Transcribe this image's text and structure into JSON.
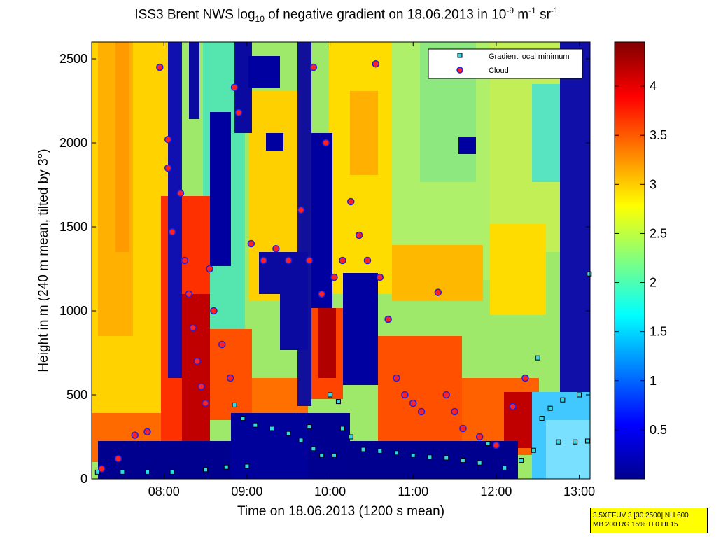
{
  "title": {
    "pre": "ISS3 Brent NWS log",
    "sub": "10",
    "mid": " of negative gradient on 18.06.2013 in 10",
    "sup1": "-9",
    "mid2": " m",
    "sup2": "-1",
    "mid3": " sr",
    "sup3": "-1"
  },
  "info_box": {
    "line1": "3.5XEFUV 3 [30 2500] NH 600",
    "line2": "MB 200 RG 15% TI 0 HI 15"
  },
  "chart_data": {
    "type": "heatmap",
    "title": "ISS3 Brent NWS log10 of negative gradient on 18.06.2013 in 10^-9 m^-1 sr^-1",
    "xlabel": "Time on 18.06.2013 (1200 s mean)",
    "ylabel": "Height in m (240 m mean, tilted by 3°)",
    "xlim": [
      7.13,
      13.13
    ],
    "ylim": [
      0,
      2600
    ],
    "xticks": [
      8,
      9,
      10,
      11,
      12,
      13
    ],
    "xtick_labels": [
      "08:00",
      "09:00",
      "10:00",
      "11:00",
      "12:00",
      "13:00"
    ],
    "yticks": [
      0,
      500,
      1000,
      1500,
      2000,
      2500
    ],
    "ytick_labels": [
      "0",
      "500",
      "1000",
      "1500",
      "2000",
      "2500"
    ],
    "colorbar": {
      "range": [
        0,
        4.45
      ],
      "ticks": [
        0.5,
        1,
        1.5,
        2,
        2.5,
        3,
        3.5,
        4
      ],
      "tick_labels": [
        "0.5",
        "1",
        "1.5",
        "2",
        "2.5",
        "3",
        "3.5",
        "4"
      ]
    },
    "legend": {
      "position": "top-right",
      "entries": [
        "Gradient local minimum",
        "Cloud"
      ]
    },
    "series": [
      {
        "name": "Gradient local minimum",
        "marker": "square",
        "points": [
          [
            7.2,
            40
          ],
          [
            7.5,
            40
          ],
          [
            7.8,
            40
          ],
          [
            8.1,
            40
          ],
          [
            8.5,
            55
          ],
          [
            8.75,
            70
          ],
          [
            9.0,
            75
          ],
          [
            8.85,
            440
          ],
          [
            8.95,
            360
          ],
          [
            9.1,
            320
          ],
          [
            9.3,
            300
          ],
          [
            9.5,
            270
          ],
          [
            9.65,
            230
          ],
          [
            9.8,
            180
          ],
          [
            9.75,
            310
          ],
          [
            9.9,
            140
          ],
          [
            10.05,
            140
          ],
          [
            10.0,
            500
          ],
          [
            10.1,
            460
          ],
          [
            10.15,
            300
          ],
          [
            10.25,
            250
          ],
          [
            10.4,
            175
          ],
          [
            10.6,
            165
          ],
          [
            10.8,
            155
          ],
          [
            11.0,
            140
          ],
          [
            11.2,
            130
          ],
          [
            11.4,
            125
          ],
          [
            11.6,
            110
          ],
          [
            11.8,
            95
          ],
          [
            11.9,
            210
          ],
          [
            12.1,
            65
          ],
          [
            12.3,
            110
          ],
          [
            12.45,
            170
          ],
          [
            12.5,
            720
          ],
          [
            12.55,
            360
          ],
          [
            12.65,
            420
          ],
          [
            12.8,
            470
          ],
          [
            13.0,
            500
          ],
          [
            12.75,
            220
          ],
          [
            12.95,
            220
          ],
          [
            13.1,
            225
          ],
          [
            13.12,
            1220
          ]
        ]
      },
      {
        "name": "Cloud",
        "marker": "circle",
        "points": [
          [
            7.25,
            60
          ],
          [
            7.45,
            120
          ],
          [
            7.65,
            260
          ],
          [
            7.8,
            280
          ],
          [
            7.95,
            2450
          ],
          [
            8.05,
            2020
          ],
          [
            8.05,
            1850
          ],
          [
            8.1,
            1470
          ],
          [
            8.2,
            1700
          ],
          [
            8.25,
            1300
          ],
          [
            8.3,
            1100
          ],
          [
            8.35,
            900
          ],
          [
            8.4,
            700
          ],
          [
            8.45,
            550
          ],
          [
            8.5,
            450
          ],
          [
            8.55,
            1250
          ],
          [
            8.6,
            1000
          ],
          [
            8.7,
            800
          ],
          [
            8.8,
            600
          ],
          [
            8.85,
            2330
          ],
          [
            8.9,
            2180
          ],
          [
            9.05,
            1400
          ],
          [
            9.2,
            1300
          ],
          [
            9.35,
            1370
          ],
          [
            9.5,
            1300
          ],
          [
            9.65,
            1600
          ],
          [
            9.75,
            1300
          ],
          [
            9.8,
            2450
          ],
          [
            9.9,
            1100
          ],
          [
            9.95,
            2000
          ],
          [
            10.05,
            1200
          ],
          [
            10.15,
            1300
          ],
          [
            10.25,
            1650
          ],
          [
            10.35,
            1450
          ],
          [
            10.45,
            1300
          ],
          [
            10.55,
            2470
          ],
          [
            10.6,
            1200
          ],
          [
            10.7,
            950
          ],
          [
            10.8,
            600
          ],
          [
            10.9,
            500
          ],
          [
            11.0,
            450
          ],
          [
            11.1,
            400
          ],
          [
            11.3,
            1110
          ],
          [
            11.4,
            500
          ],
          [
            11.5,
            400
          ],
          [
            11.6,
            300
          ],
          [
            11.8,
            250
          ],
          [
            12.0,
            200
          ],
          [
            12.2,
            430
          ],
          [
            12.35,
            600
          ]
        ]
      }
    ]
  }
}
